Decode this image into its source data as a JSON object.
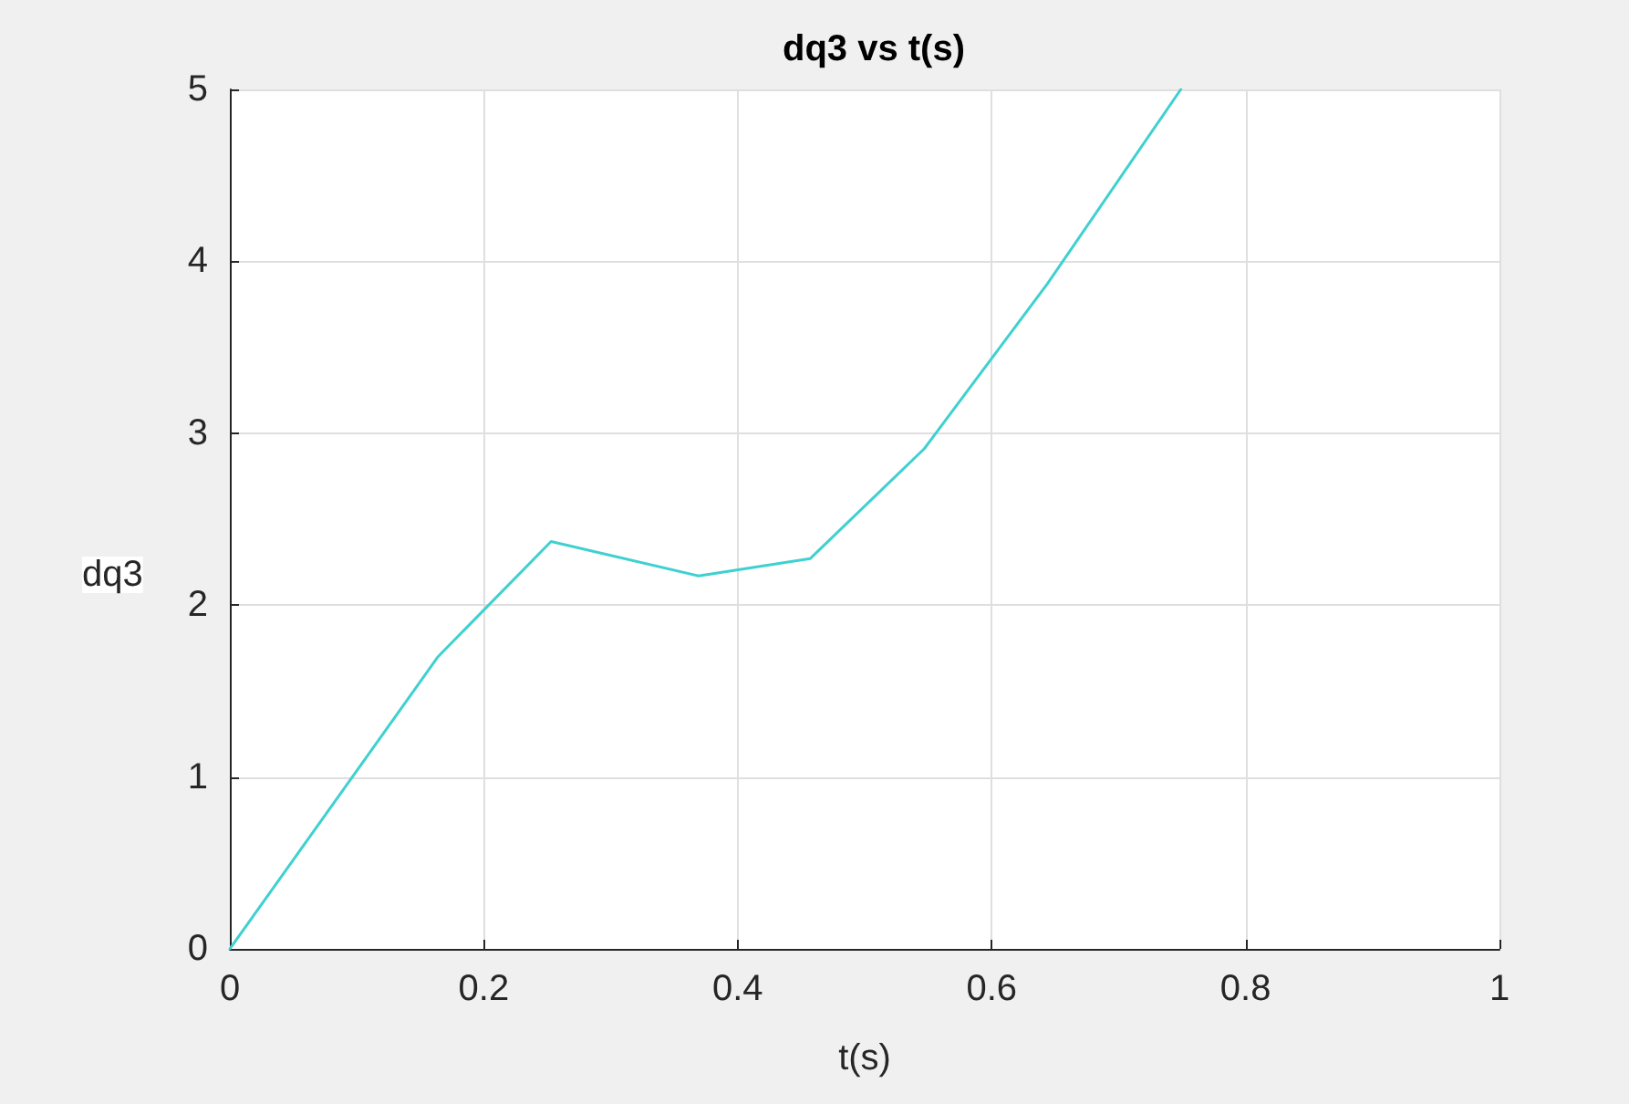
{
  "chart_data": {
    "type": "line",
    "title": "dq3 vs t(s)",
    "xlabel": "t(s)",
    "ylabel": "dq3",
    "x": [
      0,
      0.164,
      0.253,
      0.369,
      0.457,
      0.547,
      0.644,
      0.749
    ],
    "series": [
      {
        "color": "#40d0d0",
        "values": [
          0,
          1.7,
          2.37,
          2.17,
          2.27,
          2.91,
          3.87,
          5.0
        ]
      }
    ],
    "xlim": [
      0,
      1
    ],
    "xticks": [
      0,
      0.2,
      0.4,
      0.6,
      0.8,
      1
    ],
    "ylim": [
      0,
      5
    ],
    "yticks": [
      0,
      1,
      2,
      3,
      4,
      5
    ],
    "grid": true,
    "marker": "none",
    "line_style": "solid"
  }
}
